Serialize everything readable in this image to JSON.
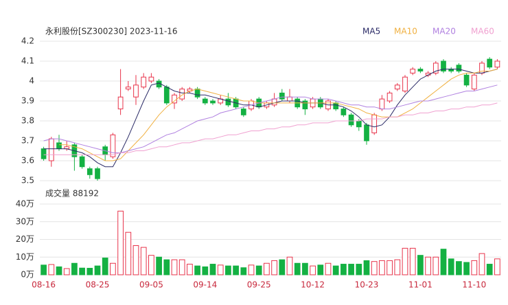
{
  "chart_data": {
    "type": "candlestick",
    "title": "永利股份[SZ300230] 2023-11-16",
    "volume_label": "成交量 88192",
    "categories": [
      "08-16",
      null,
      null,
      null,
      null,
      null,
      null,
      "08-25",
      null,
      null,
      null,
      null,
      null,
      null,
      "09-05",
      null,
      null,
      null,
      null,
      null,
      null,
      "09-14",
      null,
      null,
      null,
      null,
      null,
      null,
      "09-25",
      null,
      null,
      null,
      null,
      null,
      null,
      "10-12",
      null,
      null,
      null,
      null,
      null,
      null,
      "10-23",
      null,
      null,
      null,
      null,
      null,
      null,
      "11-01",
      null,
      null,
      null,
      null,
      null,
      null,
      "11-10",
      null,
      null,
      null
    ],
    "open": [
      3.66,
      3.6,
      3.69,
      3.66,
      3.68,
      3.62,
      3.56,
      3.56,
      3.67,
      3.62,
      3.86,
      3.96,
      3.92,
      3.97,
      4.0,
      4.0,
      3.97,
      3.89,
      3.91,
      3.95,
      3.96,
      3.91,
      3.9,
      3.89,
      3.91,
      3.91,
      3.86,
      3.86,
      3.91,
      3.87,
      3.88,
      3.94,
      3.9,
      3.91,
      3.9,
      3.87,
      3.91,
      3.86,
      3.89,
      3.86,
      3.83,
      3.8,
      3.78,
      3.74,
      3.86,
      3.9,
      3.96,
      3.95,
      4.04,
      4.06,
      4.03,
      4.04,
      4.1,
      4.06,
      4.08,
      4.03,
      3.96,
      4.04,
      4.11,
      4.07
    ],
    "close": [
      3.61,
      3.71,
      3.66,
      3.67,
      3.62,
      3.57,
      3.53,
      3.51,
      3.63,
      3.73,
      3.92,
      3.97,
      3.98,
      4.02,
      4.02,
      3.97,
      3.89,
      3.93,
      3.96,
      3.96,
      3.92,
      3.89,
      3.89,
      3.91,
      3.88,
      3.87,
      3.83,
      3.9,
      3.87,
      3.89,
      3.91,
      3.91,
      3.92,
      3.87,
      3.86,
      3.91,
      3.87,
      3.9,
      3.86,
      3.83,
      3.78,
      3.77,
      3.7,
      3.83,
      3.91,
      3.94,
      3.98,
      4.02,
      4.06,
      4.05,
      4.04,
      4.09,
      4.05,
      4.05,
      4.05,
      3.98,
      4.03,
      4.09,
      4.07,
      4.1
    ],
    "high": [
      3.67,
      3.72,
      3.73,
      3.7,
      3.69,
      3.63,
      3.57,
      3.57,
      3.68,
      3.74,
      4.06,
      4.0,
      4.03,
      4.04,
      4.04,
      4.01,
      3.98,
      3.94,
      3.97,
      3.97,
      3.97,
      3.92,
      3.91,
      3.93,
      3.94,
      3.92,
      3.87,
      3.91,
      3.92,
      3.9,
      3.94,
      3.96,
      3.96,
      3.92,
      3.91,
      3.92,
      3.92,
      3.91,
      3.9,
      3.87,
      3.84,
      3.81,
      3.79,
      3.84,
      3.93,
      3.95,
      3.99,
      4.03,
      4.07,
      4.07,
      4.05,
      4.1,
      4.11,
      4.07,
      4.09,
      4.04,
      4.04,
      4.1,
      4.12,
      4.11
    ],
    "low": [
      3.6,
      3.57,
      3.65,
      3.65,
      3.55,
      3.56,
      3.51,
      3.5,
      3.6,
      3.61,
      3.83,
      3.95,
      3.88,
      3.96,
      3.99,
      3.96,
      3.88,
      3.86,
      3.9,
      3.94,
      3.91,
      3.88,
      3.88,
      3.88,
      3.87,
      3.86,
      3.82,
      3.85,
      3.86,
      3.86,
      3.87,
      3.9,
      3.89,
      3.86,
      3.83,
      3.86,
      3.86,
      3.85,
      3.85,
      3.82,
      3.77,
      3.75,
      3.68,
      3.73,
      3.85,
      3.89,
      3.95,
      3.94,
      4.03,
      4.04,
      4.02,
      4.03,
      4.04,
      4.04,
      4.04,
      3.97,
      3.95,
      4.03,
      4.06,
      4.06
    ],
    "volume": [
      5.5,
      5.8,
      4.5,
      3.5,
      6.5,
      3.8,
      3.7,
      5,
      9.5,
      6.5,
      36,
      24,
      16.5,
      15.5,
      11,
      10,
      8.5,
      8.5,
      8.5,
      6,
      5,
      4.5,
      6,
      5.5,
      5,
      5,
      4,
      5.5,
      5,
      6.5,
      8,
      8.5,
      10,
      6.5,
      6.5,
      5,
      5.5,
      6.5,
      5,
      6,
      6,
      6,
      8,
      7.5,
      8,
      8,
      8.5,
      15,
      15,
      11,
      10,
      10,
      14.5,
      9,
      7.5,
      7,
      8,
      12,
      6,
      9
    ],
    "up_color": "#e8334a",
    "down_color": "#14b143",
    "series": [
      {
        "name": "MA5",
        "color": "#2a2a66",
        "values": [
          3.66,
          3.66,
          3.66,
          3.66,
          3.65,
          3.64,
          3.62,
          3.59,
          3.57,
          3.57,
          3.64,
          3.72,
          3.81,
          3.9,
          3.98,
          3.99,
          3.97,
          3.95,
          3.94,
          3.94,
          3.93,
          3.93,
          3.92,
          3.91,
          3.9,
          3.89,
          3.88,
          3.88,
          3.87,
          3.88,
          3.89,
          3.9,
          3.9,
          3.9,
          3.89,
          3.89,
          3.89,
          3.88,
          3.88,
          3.87,
          3.85,
          3.82,
          3.78,
          3.77,
          3.78,
          3.82,
          3.88,
          3.93,
          3.97,
          4.01,
          4.03,
          4.05,
          4.06,
          4.06,
          4.06,
          4.05,
          4.04,
          4.04,
          4.05,
          4.06
        ]
      },
      {
        "name": "MA10",
        "color": "#f0b040",
        "values": [
          null,
          null,
          3.68,
          3.68,
          3.67,
          3.66,
          3.64,
          3.62,
          3.6,
          3.6,
          3.61,
          3.65,
          3.69,
          3.73,
          3.78,
          3.83,
          3.87,
          3.9,
          3.93,
          3.95,
          3.96,
          3.95,
          3.94,
          3.93,
          3.92,
          3.91,
          3.9,
          3.9,
          3.89,
          3.89,
          3.89,
          3.89,
          3.89,
          3.89,
          3.89,
          3.89,
          3.89,
          3.89,
          3.89,
          3.88,
          3.87,
          3.86,
          3.84,
          3.83,
          3.82,
          3.82,
          3.82,
          3.84,
          3.86,
          3.89,
          3.92,
          3.95,
          3.98,
          4.01,
          4.03,
          4.04,
          4.04,
          4.05,
          4.05,
          4.06
        ]
      },
      {
        "name": "MA20",
        "color": "#b080e0",
        "values": [
          3.7,
          3.71,
          3.71,
          3.7,
          3.69,
          3.68,
          3.67,
          3.66,
          3.65,
          3.64,
          3.64,
          3.65,
          3.66,
          3.67,
          3.69,
          3.71,
          3.73,
          3.74,
          3.76,
          3.78,
          3.8,
          3.81,
          3.82,
          3.84,
          3.85,
          3.86,
          3.87,
          3.88,
          3.89,
          3.9,
          3.91,
          3.92,
          3.92,
          3.92,
          3.92,
          3.91,
          3.91,
          3.91,
          3.9,
          3.89,
          3.88,
          3.88,
          3.87,
          3.87,
          3.86,
          3.86,
          3.87,
          3.88,
          3.89,
          3.9,
          3.9,
          3.91,
          3.92,
          3.93,
          3.94,
          3.95,
          3.95,
          3.96,
          3.97,
          3.98
        ]
      },
      {
        "name": "MA60",
        "color": "#f0a0d0",
        "values": [
          3.63,
          3.63,
          3.63,
          3.63,
          3.63,
          3.63,
          3.63,
          3.63,
          3.63,
          3.63,
          3.64,
          3.64,
          3.65,
          3.65,
          3.66,
          3.67,
          3.67,
          3.68,
          3.69,
          3.69,
          3.7,
          3.71,
          3.71,
          3.72,
          3.73,
          3.73,
          3.74,
          3.75,
          3.75,
          3.76,
          3.76,
          3.77,
          3.77,
          3.78,
          3.78,
          3.79,
          3.79,
          3.79,
          3.8,
          3.8,
          3.8,
          3.8,
          3.81,
          3.81,
          3.81,
          3.82,
          3.82,
          3.83,
          3.83,
          3.84,
          3.84,
          3.85,
          3.85,
          3.86,
          3.86,
          3.87,
          3.87,
          3.88,
          3.88,
          3.89
        ]
      }
    ],
    "ylim": [
      3.5,
      4.2
    ],
    "yticks": [
      3.5,
      3.6,
      3.7,
      3.8,
      3.9,
      4,
      4.1,
      4.2
    ],
    "volume_ylim": [
      0,
      40
    ],
    "volume_ticks": [
      {
        "value": 0,
        "label": "0万"
      },
      {
        "value": 10,
        "label": "10万"
      },
      {
        "value": 20,
        "label": "20万"
      },
      {
        "value": 30,
        "label": "30万"
      },
      {
        "value": 40,
        "label": "40万"
      }
    ],
    "grid": true
  }
}
